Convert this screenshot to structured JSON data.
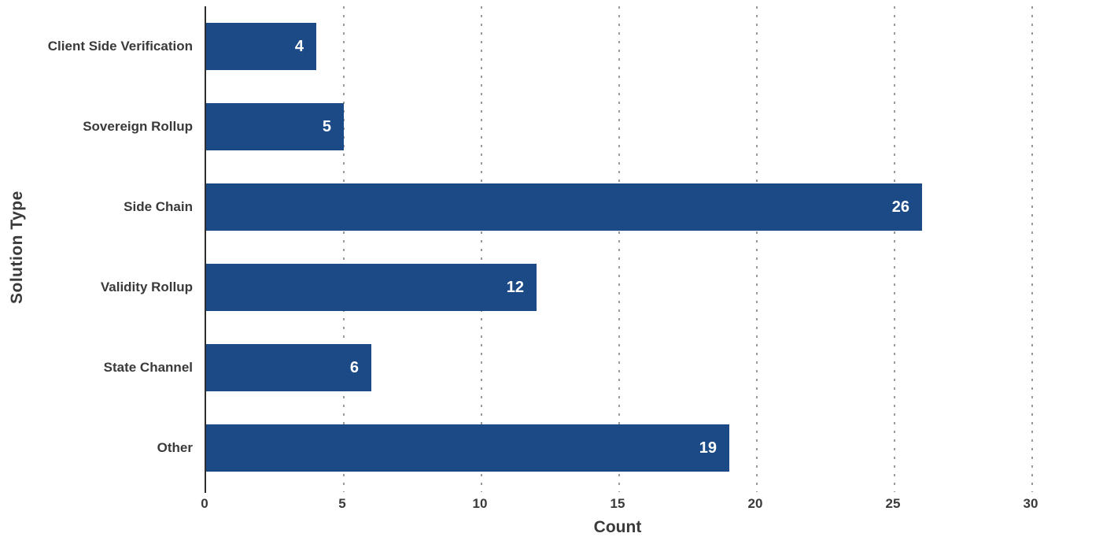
{
  "chart_data": {
    "type": "bar",
    "orientation": "horizontal",
    "title": "",
    "xlabel": "Count",
    "ylabel": "Solution Type",
    "categories": [
      "Client Side Verification",
      "Sovereign Rollup",
      "Side Chain",
      "Validity Rollup",
      "State Channel",
      "Other"
    ],
    "values": [
      4,
      5,
      26,
      12,
      6,
      19
    ],
    "xticks": [
      0,
      5,
      10,
      15,
      20,
      25,
      30
    ],
    "xlim": [
      0,
      32.43
    ],
    "grid": "vertical-dotted",
    "legend": "none",
    "bar_color": "#1c4a87",
    "value_label_color": "#ffffff",
    "axis_text_color": "#3a3a3a",
    "gridline_color": "#9a9a9a"
  }
}
